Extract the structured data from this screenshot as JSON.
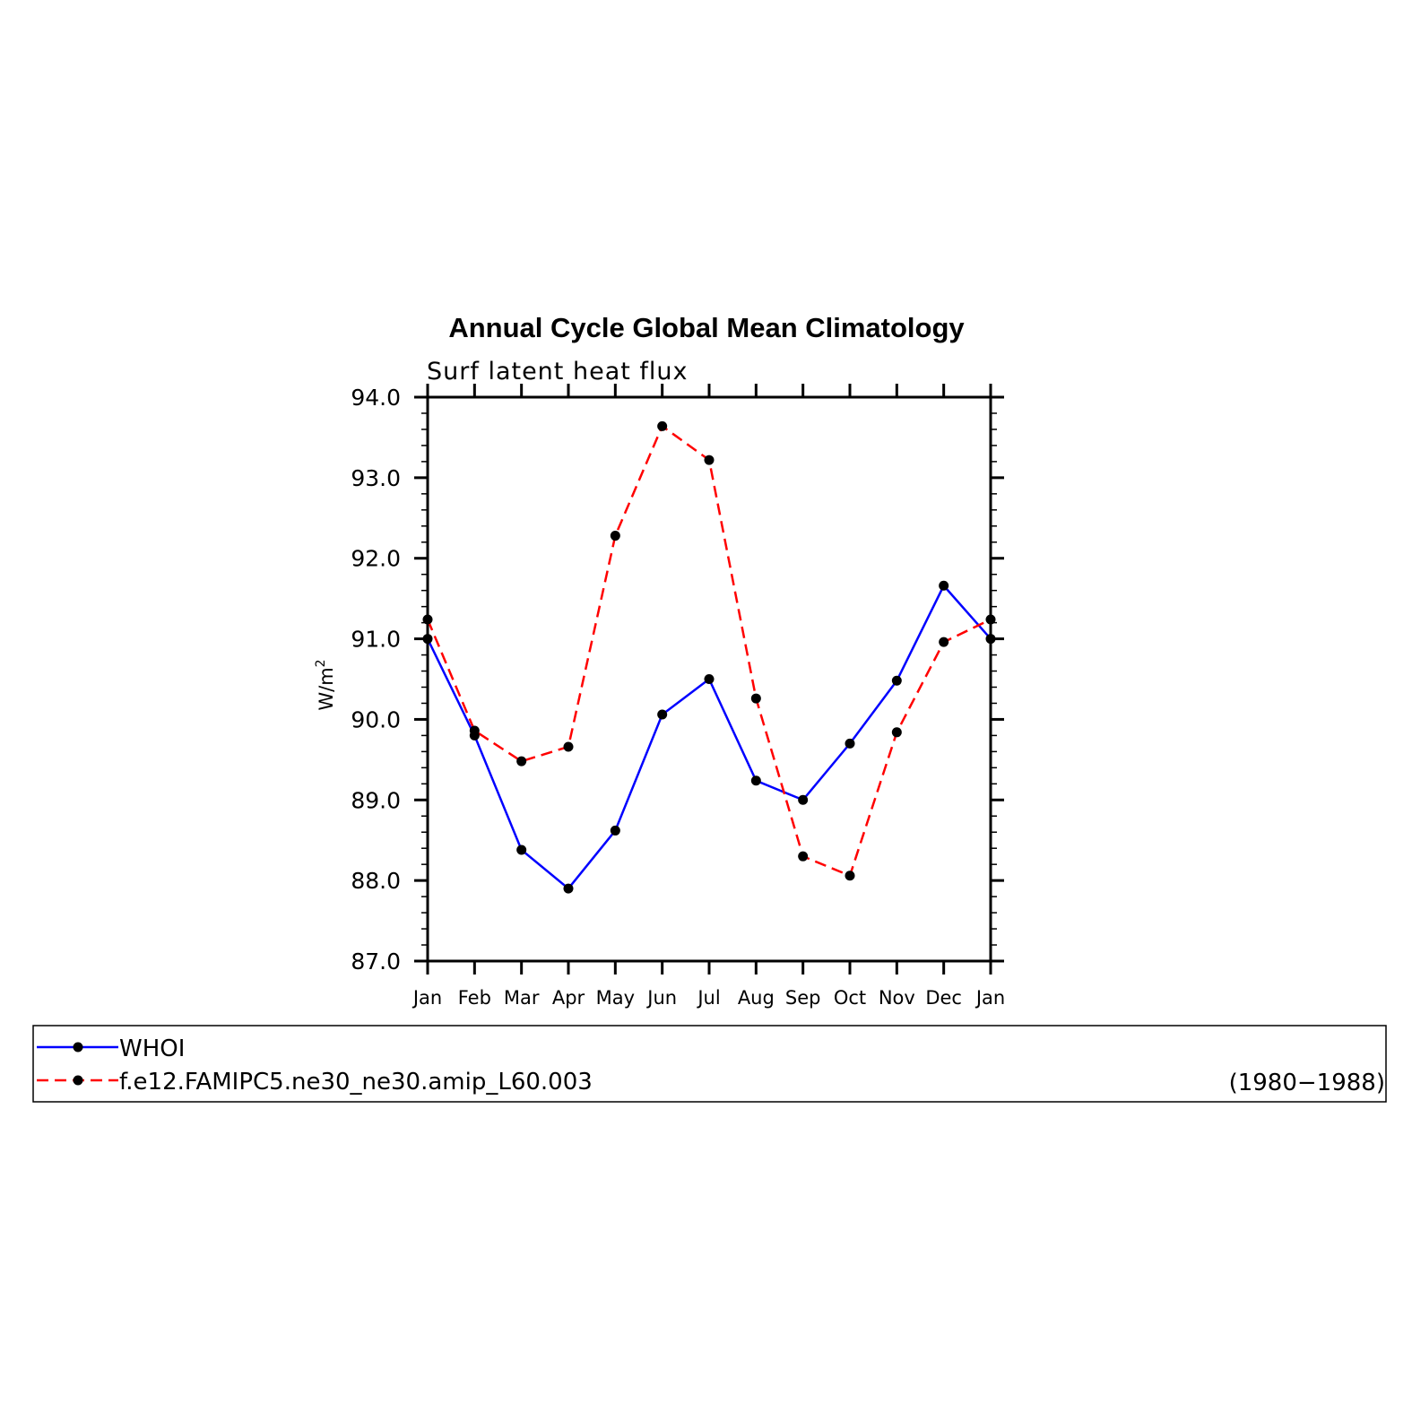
{
  "chart_data": {
    "type": "line",
    "title": "Annual Cycle Global Mean Climatology",
    "subtitle": "Surf latent heat flux",
    "ylabel": "W/m",
    "ylabel_sup": "2",
    "ylim": [
      87.0,
      94.0
    ],
    "yticks": [
      "87.0",
      "88.0",
      "89.0",
      "90.0",
      "91.0",
      "92.0",
      "93.0",
      "94.0"
    ],
    "categories": [
      "Jan",
      "Feb",
      "Mar",
      "Apr",
      "May",
      "Jun",
      "Jul",
      "Aug",
      "Sep",
      "Oct",
      "Nov",
      "Dec",
      "Jan"
    ],
    "grid": false,
    "legend_position": "bottom",
    "series": [
      {
        "name": "WHOI",
        "color": "#0000ff",
        "dash": "solid",
        "marker": "dot",
        "values": [
          91.0,
          89.8,
          88.38,
          87.9,
          88.62,
          90.06,
          90.5,
          89.24,
          89.0,
          89.7,
          90.48,
          91.66,
          91.0
        ]
      },
      {
        "name": "f.e12.FAMIPC5.ne30_ne30.amip_L60.003",
        "color": "#ff0000",
        "dash": "dashed",
        "marker": "dot",
        "values": [
          91.24,
          89.86,
          89.48,
          89.66,
          92.28,
          93.64,
          93.22,
          90.26,
          88.3,
          88.06,
          89.84,
          90.96,
          91.24
        ]
      }
    ],
    "legend_note": "(1980−1988)"
  }
}
